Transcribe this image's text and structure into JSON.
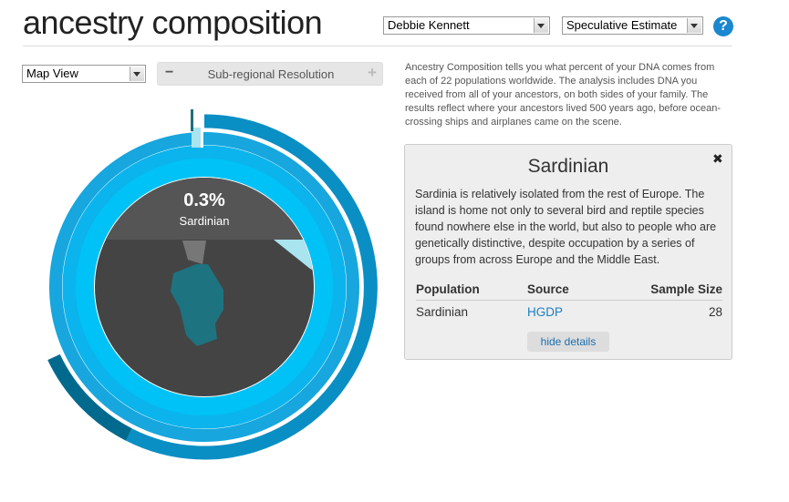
{
  "header": {
    "title": "ancestry composition",
    "profile": "Debbie Kennett",
    "estimate": "Speculative Estimate",
    "help": "?"
  },
  "controls": {
    "view": "Map View",
    "minus": "−",
    "resolution": "Sub-regional Resolution",
    "plus": "+"
  },
  "description": "Ancestry Composition tells you what percent of your DNA comes from each of 22 populations worldwide. The analysis includes DNA you received from all of your ancestors, on both sides of your family. The results reflect where your ancestors lived 500 years ago, before ocean-crossing ships and airplanes came on the scene.",
  "donut": {
    "percent": "0.3%",
    "label": "Sardinian"
  },
  "details": {
    "title": "Sardinian",
    "close": "✖",
    "text": "Sardinia is relatively isolated from the rest of Europe. The island is home not only to several bird and reptile species found nowhere else in the world, but also to people who are genetically distinctive, despite occupation by a series of groups from across Europe and the Middle East.",
    "table": {
      "headers": [
        "Population",
        "Source",
        "Sample Size"
      ],
      "rows": [
        [
          "Sardinian",
          "HGDP",
          28
        ]
      ]
    },
    "button": "hide details"
  }
}
